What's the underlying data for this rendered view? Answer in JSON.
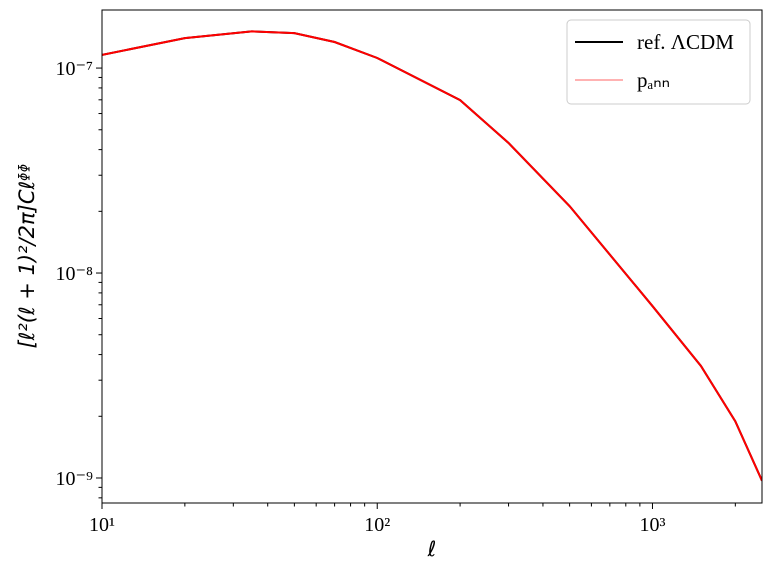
{
  "chart_data": {
    "type": "line",
    "xlabel": "ℓ",
    "ylabel": "[ℓ²(ℓ + 1)²/2π]Cℓᶲᶲ",
    "x": [
      10,
      20,
      35,
      50,
      70,
      100,
      200,
      300,
      500,
      1000,
      1500,
      2000,
      2500
    ],
    "series": [
      {
        "name": "ref. ΛCDM",
        "color": "#000000",
        "values": [
          1.16e-07,
          1.4e-07,
          1.51e-07,
          1.48e-07,
          1.34e-07,
          1.12e-07,
          6.98e-08,
          4.31e-08,
          2.12e-08,
          6.9e-09,
          3.52e-09,
          1.89e-09,
          9.7e-10
        ]
      },
      {
        "name": "pₐₙₙ",
        "color": "#ff0000",
        "values": [
          1.16e-07,
          1.4e-07,
          1.51e-07,
          1.48e-07,
          1.34e-07,
          1.12e-07,
          6.98e-08,
          4.31e-08,
          2.12e-08,
          6.9e-09,
          3.52e-09,
          1.89e-09,
          9.7e-10
        ]
      }
    ],
    "legend_alpha": [
      1,
      0.3
    ],
    "xscale": "log",
    "yscale": "log",
    "xlim": [
      10,
      2500
    ],
    "ylim": [
      7.55e-10,
      1.92e-07
    ],
    "xticks": [
      {
        "value": 10,
        "label": "10¹"
      },
      {
        "value": 100,
        "label": "10²"
      },
      {
        "value": 1000,
        "label": "10³"
      }
    ],
    "yticks": [
      {
        "value": 1e-09,
        "label": "10⁻⁹"
      },
      {
        "value": 1e-08,
        "label": "10⁻⁸"
      },
      {
        "value": 1e-07,
        "label": "10⁻⁷"
      }
    ],
    "xminorticks": [
      20,
      30,
      40,
      50,
      60,
      70,
      80,
      90,
      200,
      300,
      400,
      500,
      600,
      700,
      800,
      900,
      2000
    ],
    "yminorticks": [
      8e-10,
      9e-10,
      2e-09,
      3e-09,
      4e-09,
      5e-09,
      6e-09,
      7e-09,
      8e-09,
      9e-09,
      2e-08,
      3e-08,
      4e-08,
      5e-08,
      6e-08,
      7e-08,
      8e-08,
      9e-08
    ],
    "legend": "upper right"
  }
}
